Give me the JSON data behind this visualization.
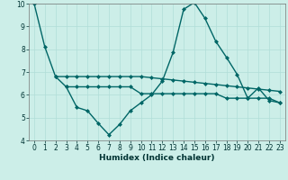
{
  "title": "",
  "xlabel": "Humidex (Indice chaleur)",
  "ylabel": "",
  "bg_color": "#cceee8",
  "line_color": "#006666",
  "grid_color": "#b0ddd8",
  "xlim": [
    -0.5,
    23.5
  ],
  "ylim": [
    4,
    10
  ],
  "xticks": [
    0,
    1,
    2,
    3,
    4,
    5,
    6,
    7,
    8,
    9,
    10,
    11,
    12,
    13,
    14,
    15,
    16,
    17,
    18,
    19,
    20,
    21,
    22,
    23
  ],
  "yticks": [
    4,
    5,
    6,
    7,
    8,
    9,
    10
  ],
  "line1_x": [
    0,
    1,
    2,
    3,
    4,
    5,
    6,
    7,
    8,
    9,
    10,
    11,
    12,
    13,
    14,
    15,
    16,
    17,
    18,
    19,
    20,
    21,
    22,
    23
  ],
  "line1_y": [
    10.0,
    8.1,
    6.8,
    6.35,
    5.45,
    5.3,
    4.75,
    4.25,
    4.7,
    5.3,
    5.65,
    6.0,
    6.6,
    7.85,
    9.75,
    10.05,
    9.35,
    8.35,
    7.65,
    6.9,
    5.85,
    6.3,
    5.75,
    5.65
  ],
  "line2_x": [
    2,
    3,
    4,
    5,
    6,
    7,
    8,
    9,
    10,
    11,
    12,
    13,
    14,
    15,
    16,
    17,
    18,
    19,
    20,
    21,
    22,
    23
  ],
  "line2_y": [
    6.8,
    6.8,
    6.8,
    6.8,
    6.8,
    6.8,
    6.8,
    6.8,
    6.8,
    6.75,
    6.7,
    6.65,
    6.6,
    6.55,
    6.5,
    6.45,
    6.4,
    6.35,
    6.3,
    6.25,
    6.2,
    6.15
  ],
  "line3_x": [
    3,
    4,
    5,
    6,
    7,
    8,
    9,
    10,
    11,
    12,
    13,
    14,
    15,
    16,
    17,
    18,
    19,
    20,
    21,
    22,
    23
  ],
  "line3_y": [
    6.35,
    6.35,
    6.35,
    6.35,
    6.35,
    6.35,
    6.35,
    6.05,
    6.05,
    6.05,
    6.05,
    6.05,
    6.05,
    6.05,
    6.05,
    5.85,
    5.85,
    5.85,
    5.85,
    5.85,
    5.65
  ],
  "marker": "D",
  "marker_size": 2.0,
  "line_width": 1.0,
  "tick_fontsize": 5.5,
  "xlabel_fontsize": 6.5,
  "xlabel_fontweight": "bold"
}
